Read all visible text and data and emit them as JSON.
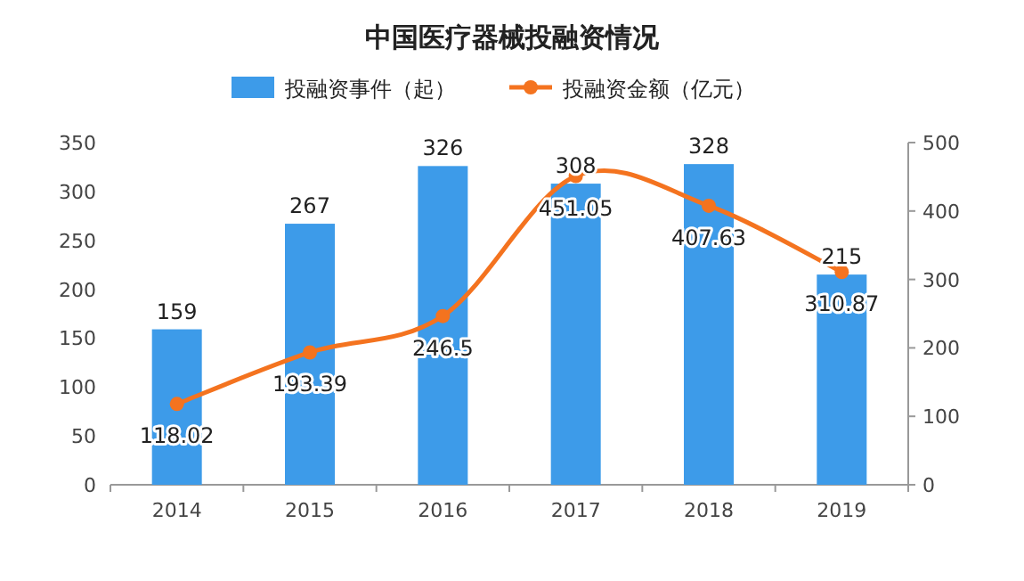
{
  "chart_data": {
    "type": "bar",
    "title": "中国医疗器械投融资情况",
    "categories": [
      "2014",
      "2015",
      "2016",
      "2017",
      "2018",
      "2019"
    ],
    "series": [
      {
        "name": "投融资事件（起）",
        "color": "#3d9be9",
        "values": [
          159,
          267,
          326,
          308,
          328,
          215
        ]
      },
      {
        "name": "投融资金额（亿元）",
        "type": "line",
        "axis": "y2",
        "color": "#f4731f",
        "values": [
          118.02,
          193.39,
          246.5,
          451.05,
          407.63,
          310.87
        ]
      }
    ],
    "ylim": [
      0,
      350
    ],
    "yticks": [
      0,
      50,
      100,
      150,
      200,
      250,
      300,
      350
    ],
    "y2lim": [
      0,
      500
    ],
    "y2ticks": [
      0,
      100,
      200,
      300,
      400,
      500
    ],
    "marker": "circle",
    "data_labels": true,
    "legend": "top",
    "grid": false
  }
}
